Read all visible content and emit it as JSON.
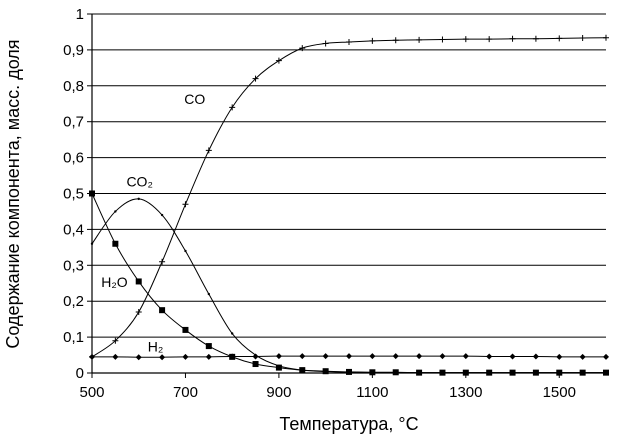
{
  "chart_data": {
    "type": "line",
    "title": "",
    "xlabel": "Температура, °С",
    "ylabel": "Содержание компонента, масс. доля",
    "xlim": [
      500,
      1600
    ],
    "ylim": [
      0,
      1
    ],
    "grid": true,
    "x_ticks": [
      "500",
      "700",
      "900",
      "1100",
      "1300",
      "1500"
    ],
    "y_ticks": [
      "0",
      "0,1",
      "0,2",
      "0,3",
      "0,4",
      "0,5",
      "0,6",
      "0,7",
      "0,8",
      "0,9",
      "1"
    ],
    "series": [
      {
        "name": "CO",
        "label": "CO",
        "marker": "plus",
        "x": [
          500,
          550,
          600,
          650,
          700,
          750,
          800,
          850,
          900,
          950,
          1000,
          1050,
          1100,
          1150,
          1200,
          1250,
          1300,
          1350,
          1400,
          1450,
          1500,
          1550,
          1600
        ],
        "y": [
          0.045,
          0.09,
          0.17,
          0.31,
          0.47,
          0.62,
          0.74,
          0.82,
          0.87,
          0.905,
          0.918,
          0.922,
          0.925,
          0.927,
          0.928,
          0.929,
          0.93,
          0.93,
          0.931,
          0.931,
          0.932,
          0.933,
          0.934
        ]
      },
      {
        "name": "CO2",
        "label": "CO₂",
        "marker": "small",
        "x": [
          500,
          550,
          600,
          650,
          700,
          750,
          800,
          850,
          900,
          950,
          1000,
          1050,
          1100,
          1150,
          1200,
          1250,
          1300,
          1350,
          1400,
          1450,
          1500,
          1550,
          1600
        ],
        "y": [
          0.36,
          0.45,
          0.485,
          0.44,
          0.34,
          0.22,
          0.11,
          0.05,
          0.02,
          0.008,
          0.004,
          0.002,
          0.001,
          0.001,
          0.001,
          0.001,
          0.001,
          0.001,
          0.001,
          0.001,
          0.001,
          0.001,
          0.001
        ]
      },
      {
        "name": "H2O",
        "label": "H₂O",
        "marker": "square",
        "x": [
          500,
          550,
          600,
          650,
          700,
          750,
          800,
          850,
          900,
          950,
          1000,
          1050,
          1100,
          1150,
          1200,
          1250,
          1300,
          1350,
          1400,
          1450,
          1500,
          1550,
          1600
        ],
        "y": [
          0.5,
          0.36,
          0.255,
          0.175,
          0.12,
          0.075,
          0.045,
          0.025,
          0.015,
          0.008,
          0.005,
          0.003,
          0.002,
          0.002,
          0.001,
          0.001,
          0.001,
          0.001,
          0.001,
          0.001,
          0.001,
          0.001,
          0.001
        ]
      },
      {
        "name": "H2",
        "label": "H₂",
        "marker": "diamond",
        "x": [
          500,
          550,
          600,
          650,
          700,
          750,
          800,
          850,
          900,
          950,
          1000,
          1050,
          1100,
          1150,
          1200,
          1250,
          1300,
          1350,
          1400,
          1450,
          1500,
          1550,
          1600
        ],
        "y": [
          0.045,
          0.045,
          0.044,
          0.044,
          0.045,
          0.045,
          0.046,
          0.046,
          0.047,
          0.047,
          0.047,
          0.047,
          0.047,
          0.047,
          0.047,
          0.047,
          0.047,
          0.046,
          0.046,
          0.046,
          0.045,
          0.045,
          0.045
        ]
      }
    ]
  }
}
